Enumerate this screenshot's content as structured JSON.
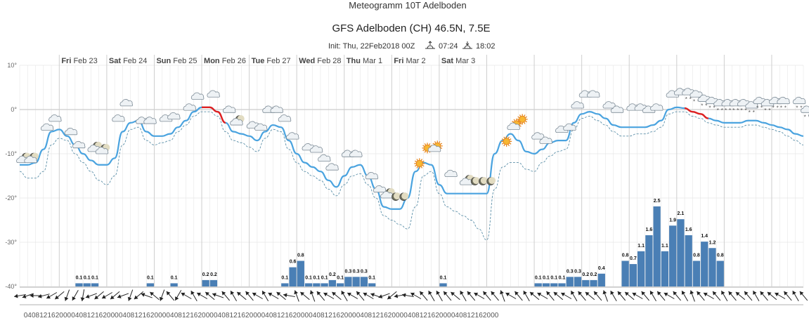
{
  "title": "Meteogramm 10T Adelboden",
  "subtitle": "GFS Adelboden (CH) 46.5N, 7.5E",
  "init": {
    "label": "Init: Thu, 22Feb2018 00Z",
    "sunrise": "07:24",
    "sunset": "18:02"
  },
  "chart_data": {
    "type": "line",
    "title": "GFS Adelboden (CH) 46.5N, 7.5E",
    "step_hours": 4,
    "start_hour": 0,
    "x_tick_labels": [
      "04",
      "08",
      "12",
      "16",
      "20",
      "00",
      "04",
      "08",
      "12",
      "16",
      "20",
      "00",
      "04",
      "08",
      "12",
      "16",
      "20",
      "00",
      "04",
      "08",
      "12",
      "16",
      "20",
      "00",
      "04",
      "08",
      "12",
      "16",
      "20",
      "00",
      "04",
      "08",
      "12",
      "16",
      "20",
      "00",
      "04",
      "08",
      "12",
      "16",
      "20",
      "00",
      "04",
      "08",
      "12",
      "16",
      "20",
      "00",
      "04",
      "08",
      "12",
      "16",
      "20",
      "00",
      "04",
      "08",
      "12",
      "16",
      "20",
      "00"
    ],
    "day_labels": [
      {
        "dow": "Fri",
        "date": "Feb 23"
      },
      {
        "dow": "Sat",
        "date": "Feb 24"
      },
      {
        "dow": "Sun",
        "date": "Feb 25"
      },
      {
        "dow": "Mon",
        "date": "Feb 26"
      },
      {
        "dow": "Tue",
        "date": "Feb 27"
      },
      {
        "dow": "Wed",
        "date": "Feb 28"
      },
      {
        "dow": "Thu",
        "date": "Mar 1"
      },
      {
        "dow": "Fri",
        "date": "Mar 2"
      },
      {
        "dow": "Sat",
        "date": "Mar 3"
      }
    ],
    "y_axis": {
      "ticks": [
        10,
        0,
        -10,
        -20,
        -30,
        -40
      ],
      "tick_labels": [
        "10°",
        "0°",
        "-10°",
        "-20°",
        "-30°",
        "-40°"
      ],
      "ylim": [
        -40,
        10
      ]
    },
    "grid": true,
    "series": [
      {
        "values": [
          -12.5,
          -12.5,
          -12,
          -9,
          -5,
          -4.5,
          -6,
          -8,
          -10,
          -11.5,
          -12.5,
          -12.5,
          -11,
          -5,
          -3,
          -2.5,
          -5,
          -6,
          -6,
          -5.5,
          -4,
          -2.5,
          -0.5,
          0.5,
          0.5,
          -0.5,
          -3,
          -5,
          -5.5,
          -6,
          -7,
          -5,
          -3.5,
          -4,
          -7,
          -10,
          -12,
          -13,
          -14,
          -16,
          -17.5,
          -15,
          -13,
          -12.5,
          -15,
          -18,
          -22,
          -22.5,
          -22.5,
          -20,
          -14,
          -12,
          -12.5,
          -17,
          -19,
          -19,
          -19,
          -19,
          -19,
          -19,
          -10,
          -7,
          -5.5,
          -7,
          -9.5,
          -10,
          -9,
          -7.5,
          -7,
          -7,
          -3,
          -1,
          -0.5,
          -1,
          -2,
          -3.5,
          -4,
          -4,
          -4,
          -4,
          -3.5,
          -2.5,
          0,
          0.5,
          0.3,
          -0.5,
          -1,
          -2,
          -2.5,
          -3,
          -3,
          -3,
          -2.5,
          -2.5,
          -3,
          -3.5,
          -4,
          -4.5,
          -5.5,
          -6
        ],
        "color": "#4aa3df"
      },
      {
        "values": [
          -14,
          -15.5,
          -15.5,
          -14,
          -8,
          -6.5,
          -7,
          -10,
          -12,
          -14,
          -16,
          -17,
          -15,
          -8,
          -4.5,
          -4,
          -7,
          -8,
          -7.5,
          -7,
          -5,
          -3.5,
          -1.5,
          -0.5,
          -0.5,
          -1.5,
          -5,
          -7,
          -7.5,
          -8.5,
          -9.5,
          -6.5,
          -4.5,
          -5,
          -9,
          -12,
          -14,
          -15,
          -16,
          -18,
          -19.5,
          -17,
          -15,
          -14.5,
          -17,
          -20,
          -24,
          -25,
          -26,
          -27,
          -22,
          -15,
          -14,
          -19,
          -22,
          -23,
          -24,
          -25,
          -27,
          -29.5,
          -18,
          -13,
          -12,
          -12,
          -13.5,
          -14,
          -12,
          -10.5,
          -9.5,
          -9,
          -4.5,
          -2,
          -1.5,
          -2.5,
          -3.5,
          -5,
          -6,
          -6,
          -5.5,
          -5.5,
          -5,
          -4,
          -1,
          -0.5,
          -0.5,
          -1.5,
          -2,
          -3,
          -3.5,
          -4,
          -4,
          -4,
          -3.5,
          -3.5,
          -4,
          -4.5,
          -5,
          -6,
          -7,
          -8
        ],
        "color": "#5b8fa8",
        "style": "dashed"
      }
    ],
    "freezing_segments": [
      [
        23,
        26
      ],
      [
        84,
        87
      ]
    ],
    "precipitation": {
      "ylim_mm": [
        0,
        3.2
      ],
      "values": [
        0,
        0,
        0,
        0,
        0,
        0,
        0,
        0.1,
        0.1,
        0.1,
        0,
        0,
        0,
        0,
        0,
        0,
        0.1,
        0,
        0,
        0.1,
        0,
        0,
        0,
        0.2,
        0.2,
        0,
        0,
        0,
        0,
        0,
        0,
        0,
        0,
        0.1,
        0.6,
        0.8,
        0.1,
        0.1,
        0.1,
        0.2,
        0.1,
        0.3,
        0.3,
        0.3,
        0.1,
        0,
        0,
        0,
        0,
        0,
        0,
        0,
        0,
        0.1,
        0,
        0,
        0,
        0,
        0,
        0,
        0,
        0,
        0,
        0,
        0,
        0.1,
        0.1,
        0.1,
        0.1,
        0.3,
        0.3,
        0.2,
        0.2,
        0.4,
        0,
        0,
        0.8,
        0.7,
        1.1,
        1.6,
        2.5,
        1.1,
        1.9,
        2.1,
        1.6,
        0.8,
        1.4,
        1.2,
        0.8
      ],
      "labels": [
        0,
        0,
        0,
        0,
        0,
        0,
        0,
        0.1,
        0.1,
        0.1,
        0,
        0,
        0,
        0,
        0,
        0,
        0.1,
        0,
        0,
        0.1,
        0,
        0,
        0,
        0.2,
        0.2,
        0,
        0,
        0,
        0,
        0,
        0,
        0,
        0,
        0.1,
        0.6,
        0.8,
        0.1,
        0.1,
        0.1,
        0.2,
        0.1,
        0.3,
        0.3,
        0.3,
        0.1,
        0,
        0,
        0,
        0,
        0,
        0,
        0,
        0,
        0.1,
        0,
        0,
        0,
        0,
        0,
        0,
        0,
        0,
        0,
        0,
        0,
        0.1,
        0.1,
        0.1,
        0.1,
        0.3,
        0.3,
        0.2,
        0.2,
        0.4,
        0,
        0,
        0.8,
        0.7,
        1.1,
        1.6,
        2.5,
        1.1,
        1.9,
        2.1,
        1.6,
        0.8,
        1.4,
        1.2,
        0.8
      ],
      "color": "#4a7fb5"
    },
    "wind_directions_deg": [
      260,
      250,
      270,
      255,
      240,
      230,
      200,
      210,
      190,
      250,
      230,
      240,
      230,
      250,
      200,
      230,
      290,
      310,
      200,
      320,
      210,
      300,
      330,
      300,
      310,
      290,
      320,
      330,
      310,
      320,
      300,
      330,
      300,
      310,
      280,
      340,
      310,
      340,
      320,
      300,
      310,
      330,
      300,
      320,
      300,
      290,
      250,
      230,
      260,
      280,
      300,
      320,
      330,
      330,
      320,
      310,
      330,
      320,
      300,
      320,
      320,
      340,
      300,
      320,
      330,
      310,
      300,
      320,
      310,
      300,
      330,
      320,
      310,
      320,
      340,
      330,
      320,
      310,
      300,
      320,
      330,
      320,
      300,
      320,
      330,
      340,
      320,
      300,
      320,
      330,
      320,
      310,
      320,
      330,
      320,
      310,
      300,
      320,
      330,
      320
    ]
  },
  "weather_icons": [
    {
      "i": 0,
      "t": -12,
      "type": "cloud-moon"
    },
    {
      "i": 1,
      "t": -12,
      "type": "cloud-moon"
    },
    {
      "i": 3,
      "t": -5,
      "type": "cloud"
    },
    {
      "i": 4,
      "t": -3,
      "type": "cloud"
    },
    {
      "i": 6,
      "t": -6,
      "type": "cloud"
    },
    {
      "i": 7,
      "t": -9,
      "type": "cloud"
    },
    {
      "i": 9,
      "t": -9.5,
      "type": "cloud-moon"
    },
    {
      "i": 10,
      "t": -10,
      "type": "cloud-moon"
    },
    {
      "i": 12,
      "t": -3,
      "type": "cloud"
    },
    {
      "i": 13,
      "t": 0.5,
      "type": "cloud"
    },
    {
      "i": 15,
      "t": -3.5,
      "type": "cloud"
    },
    {
      "i": 16,
      "t": -3.5,
      "type": "cloud"
    },
    {
      "i": 18,
      "t": -3,
      "type": "cloud"
    },
    {
      "i": 19,
      "t": -2.5,
      "type": "cloud"
    },
    {
      "i": 21,
      "t": -0.5,
      "type": "cloud"
    },
    {
      "i": 22,
      "t": 2,
      "type": "cloud"
    },
    {
      "i": 24,
      "t": 2.5,
      "type": "cloud"
    },
    {
      "i": 26,
      "t": -1,
      "type": "cloud"
    },
    {
      "i": 27,
      "t": -3.5,
      "type": "cloud-moon"
    },
    {
      "i": 29,
      "t": -4.5,
      "type": "cloud"
    },
    {
      "i": 30,
      "t": -5,
      "type": "cloud"
    },
    {
      "i": 31,
      "t": -1,
      "type": "cloud"
    },
    {
      "i": 32,
      "t": -1,
      "type": "cloud"
    },
    {
      "i": 33,
      "t": -3,
      "type": "cloud"
    },
    {
      "i": 34,
      "t": -7,
      "type": "cloud"
    },
    {
      "i": 36,
      "t": -9.5,
      "type": "cloud"
    },
    {
      "i": 37,
      "t": -10,
      "type": "cloud"
    },
    {
      "i": 38,
      "t": -12,
      "type": "cloud"
    },
    {
      "i": 39,
      "t": -14,
      "type": "cloud"
    },
    {
      "i": 41,
      "t": -11,
      "type": "cloud"
    },
    {
      "i": 42,
      "t": -11,
      "type": "cloud"
    },
    {
      "i": 44,
      "t": -16,
      "type": "cloud"
    },
    {
      "i": 45,
      "t": -19,
      "type": "cloud"
    },
    {
      "i": 46,
      "t": -20,
      "type": "cloud-moon"
    },
    {
      "i": 47,
      "t": -20.5,
      "type": "moon"
    },
    {
      "i": 48,
      "t": -20.5,
      "type": "moon"
    },
    {
      "i": 50,
      "t": -13,
      "type": "sun"
    },
    {
      "i": 51,
      "t": -9.5,
      "type": "sun"
    },
    {
      "i": 52,
      "t": -9.5,
      "type": "cloud-sun"
    },
    {
      "i": 54,
      "t": -15.5,
      "type": "cloud"
    },
    {
      "i": 56,
      "t": -17,
      "type": "cloud-moon"
    },
    {
      "i": 57,
      "t": -17,
      "type": "moon"
    },
    {
      "i": 58,
      "t": -17,
      "type": "moon"
    },
    {
      "i": 59,
      "t": -17,
      "type": "moon"
    },
    {
      "i": 61,
      "t": -8,
      "type": "sun"
    },
    {
      "i": 62,
      "t": -4.5,
      "type": "cloud-sun"
    },
    {
      "i": 63,
      "t": -3,
      "type": "sun"
    },
    {
      "i": 65,
      "t": -7,
      "type": "cloud"
    },
    {
      "i": 66,
      "t": -8,
      "type": "cloud"
    },
    {
      "i": 68,
      "t": -5.5,
      "type": "cloud"
    },
    {
      "i": 69,
      "t": -5,
      "type": "cloud"
    },
    {
      "i": 70,
      "t": 0,
      "type": "cloud"
    },
    {
      "i": 71,
      "t": 2.5,
      "type": "cloud"
    },
    {
      "i": 72,
      "t": 2.5,
      "type": "cloud"
    },
    {
      "i": 74,
      "t": 0,
      "type": "cloud"
    },
    {
      "i": 75,
      "t": -1,
      "type": "cloud"
    },
    {
      "i": 77,
      "t": -0.5,
      "type": "cloud"
    },
    {
      "i": 78,
      "t": -0.5,
      "type": "cloud"
    },
    {
      "i": 79,
      "t": -1,
      "type": "cloud"
    },
    {
      "i": 80,
      "t": -0.5,
      "type": "cloud"
    },
    {
      "i": 82,
      "t": 2.5,
      "type": "cloud"
    },
    {
      "i": 83,
      "t": 3,
      "type": "cloud"
    },
    {
      "i": 84,
      "t": 3,
      "type": "cloud-snow"
    },
    {
      "i": 85,
      "t": 2.5,
      "type": "cloud-snow"
    },
    {
      "i": 86,
      "t": 1.5,
      "type": "cloud-snow"
    },
    {
      "i": 87,
      "t": 1,
      "type": "cloud-snow"
    },
    {
      "i": 88,
      "t": 0.5,
      "type": "cloud-snow"
    },
    {
      "i": 89,
      "t": 0.5,
      "type": "cloud-snow"
    },
    {
      "i": 90,
      "t": 0.5,
      "type": "cloud-snow"
    },
    {
      "i": 91,
      "t": 0.5,
      "type": "cloud-snow"
    },
    {
      "i": 92,
      "t": 0,
      "type": "cloud-snow"
    },
    {
      "i": 93,
      "t": 1,
      "type": "cloud-snow"
    },
    {
      "i": 94,
      "t": 0.5,
      "type": "cloud-snow"
    },
    {
      "i": 95,
      "t": 1,
      "type": "cloud-snow"
    },
    {
      "i": 96,
      "t": 1,
      "type": "cloud-snow"
    },
    {
      "i": 98,
      "t": 1,
      "type": "cloud-snow"
    },
    {
      "i": 99,
      "t": -1,
      "type": "cloud-snow"
    },
    {
      "i": 100,
      "t": -2,
      "type": "cloud-snow"
    }
  ],
  "colors": {
    "temp_line": "#4aa3df",
    "dew_line": "#5b8fa8",
    "freezing": "#e02020",
    "precip": "#4a7fb5",
    "grid": "#e6e6e6",
    "zero_line": "#cccccc"
  }
}
